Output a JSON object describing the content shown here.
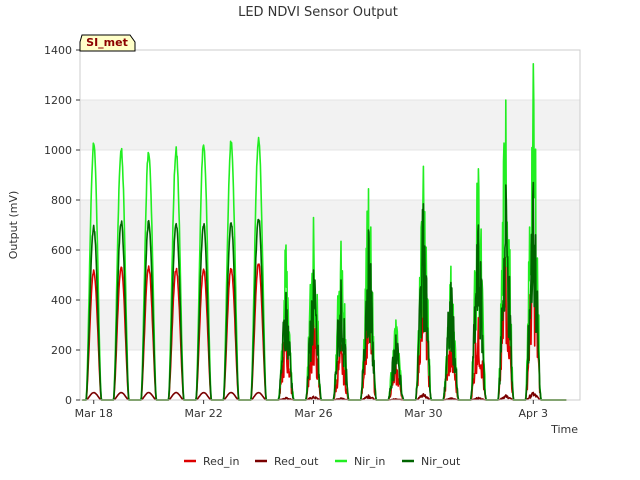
{
  "chart_data": {
    "type": "line",
    "title": "LED NDVI Sensor Output",
    "xlabel": "Time",
    "ylabel": "Output (mV)",
    "badge": "SI_met",
    "ylim": [
      0,
      1400
    ],
    "xlim": [
      "2018-03-18",
      "2018-04-04"
    ],
    "yticks": [
      0,
      200,
      400,
      600,
      800,
      1000,
      1200,
      1400
    ],
    "xticks": [
      {
        "label": "Mar 18",
        "day": 0
      },
      {
        "label": "Mar 22",
        "day": 4
      },
      {
        "label": "Mar 26",
        "day": 8
      },
      {
        "label": "Mar 30",
        "day": 12
      },
      {
        "label": "Apr 3",
        "day": 16
      }
    ],
    "grid": "horizontal bands",
    "legend": "bottom",
    "series": [
      {
        "name": "Red_in",
        "color": "#dd0000"
      },
      {
        "name": "Red_out",
        "color": "#7a0000"
      },
      {
        "name": "Nir_in",
        "color": "#22ee22"
      },
      {
        "name": "Nir_out",
        "color": "#006400"
      }
    ],
    "daily_peaks": [
      {
        "day": "Mar 18",
        "Red_in": 525,
        "Red_out": 30,
        "Nir_in": 1035,
        "Nir_out": 700
      },
      {
        "day": "Mar 19",
        "Red_in": 535,
        "Red_out": 30,
        "Nir_in": 1015,
        "Nir_out": 725
      },
      {
        "day": "Mar 20",
        "Red_in": 540,
        "Red_out": 30,
        "Nir_in": 1010,
        "Nir_out": 720
      },
      {
        "day": "Mar 21",
        "Red_in": 530,
        "Red_out": 30,
        "Nir_in": 1015,
        "Nir_out": 715
      },
      {
        "day": "Mar 22",
        "Red_in": 530,
        "Red_out": 30,
        "Nir_in": 1040,
        "Nir_out": 715
      },
      {
        "day": "Mar 23",
        "Red_in": 535,
        "Red_out": 30,
        "Nir_in": 1045,
        "Nir_out": 720
      },
      {
        "day": "Mar 24",
        "Red_in": 555,
        "Red_out": 30,
        "Nir_in": 1060,
        "Nir_out": 740
      },
      {
        "day": "Mar 25",
        "Red_in": 280,
        "Red_out": 10,
        "Nir_in": 620,
        "Nir_out": 430
      },
      {
        "day": "Mar 26",
        "Red_in": 330,
        "Red_out": 15,
        "Nir_in": 730,
        "Nir_out": 520
      },
      {
        "day": "Mar 27",
        "Red_in": 220,
        "Red_out": 8,
        "Nir_in": 635,
        "Nir_out": 480
      },
      {
        "day": "Mar 28",
        "Red_in": 470,
        "Red_out": 20,
        "Nir_in": 845,
        "Nir_out": 680
      },
      {
        "day": "Mar 29",
        "Red_in": 150,
        "Red_out": 5,
        "Nir_in": 320,
        "Nir_out": 260
      },
      {
        "day": "Mar 30",
        "Red_in": 560,
        "Red_out": 25,
        "Nir_in": 935,
        "Nir_out": 785
      },
      {
        "day": "Mar 31",
        "Red_in": 260,
        "Red_out": 8,
        "Nir_in": 535,
        "Nir_out": 470
      },
      {
        "day": "Apr 1",
        "Red_in": 330,
        "Red_out": 10,
        "Nir_in": 925,
        "Nir_out": 700
      },
      {
        "day": "Apr 2",
        "Red_in": 570,
        "Red_out": 20,
        "Nir_in": 1200,
        "Nir_out": 860
      },
      {
        "day": "Apr 3",
        "Red_in": 640,
        "Red_out": 30,
        "Nir_in": 1345,
        "Nir_out": 870
      }
    ]
  }
}
